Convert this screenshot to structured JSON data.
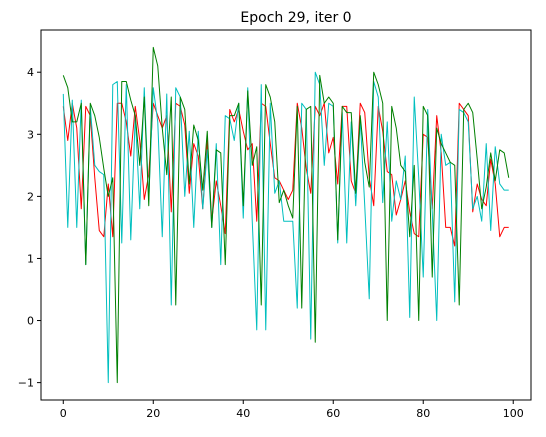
{
  "chart_data": {
    "type": "line",
    "title": "Epoch 29, iter 0",
    "xlabel": "",
    "ylabel": "",
    "xlim": [
      -4.95,
      103.95
    ],
    "ylim": [
      -1.28,
      4.68
    ],
    "x_ticks": [
      0,
      20,
      40,
      60,
      80,
      100
    ],
    "x_tick_labels": [
      "0",
      "20",
      "40",
      "60",
      "80",
      "100"
    ],
    "y_ticks": [
      -1,
      0,
      1,
      2,
      3,
      4
    ],
    "y_tick_labels": [
      "−1",
      "0",
      "1",
      "2",
      "3",
      "4"
    ],
    "grid": false,
    "legend": "none",
    "x": [
      0,
      1,
      2,
      3,
      4,
      5,
      6,
      7,
      8,
      9,
      10,
      11,
      12,
      13,
      14,
      15,
      16,
      17,
      18,
      19,
      20,
      21,
      22,
      23,
      24,
      25,
      26,
      27,
      28,
      29,
      30,
      31,
      32,
      33,
      34,
      35,
      36,
      37,
      38,
      39,
      40,
      41,
      42,
      43,
      44,
      45,
      46,
      47,
      48,
      49,
      50,
      51,
      52,
      53,
      54,
      55,
      56,
      57,
      58,
      59,
      60,
      61,
      62,
      63,
      64,
      65,
      66,
      67,
      68,
      69,
      70,
      71,
      72,
      73,
      74,
      75,
      76,
      77,
      78,
      79,
      80,
      81,
      82,
      83,
      84,
      85,
      86,
      87,
      88,
      89,
      90,
      91,
      92,
      93,
      94,
      95,
      96,
      97,
      98,
      99
    ],
    "series": [
      {
        "color": "#ff0000",
        "values": [
          3.45,
          2.9,
          3.5,
          3.1,
          1.8,
          3.45,
          3.3,
          2.3,
          1.45,
          1.35,
          2.2,
          1.35,
          3.5,
          3.5,
          3.2,
          2.65,
          3.45,
          2.9,
          1.95,
          2.35,
          3.5,
          3.3,
          3.1,
          3.3,
          1.75,
          3.5,
          3.45,
          3.15,
          2.05,
          2.85,
          2.65,
          1.8,
          2.9,
          1.6,
          2.25,
          1.85,
          1.4,
          3.4,
          3.2,
          3.4,
          3.05,
          2.75,
          2.85,
          1.6,
          3.5,
          3.45,
          2.85,
          2.3,
          2.25,
          2.1,
          1.95,
          2.1,
          3.5,
          3.1,
          2.45,
          2.05,
          3.45,
          3.3,
          3.5,
          2.7,
          2.95,
          2.2,
          3.45,
          3.45,
          2.25,
          2.05,
          3.5,
          3.35,
          2.3,
          1.85,
          3.45,
          3.05,
          2.4,
          2.35,
          1.7,
          1.95,
          2.25,
          1.75,
          1.4,
          1.35,
          3.0,
          2.95,
          1.8,
          3.3,
          2.7,
          1.5,
          1.5,
          1.2,
          3.5,
          3.4,
          3.3,
          1.75,
          2.2,
          1.95,
          1.85,
          2.6,
          2.2,
          1.35,
          1.5,
          1.5
        ]
      },
      {
        "color": "#00bfbf",
        "values": [
          3.65,
          1.5,
          3.55,
          1.5,
          3.55,
          0.9,
          3.45,
          2.5,
          2.4,
          2.35,
          -1.0,
          3.8,
          3.85,
          1.25,
          3.8,
          1.3,
          3.3,
          1.8,
          3.75,
          1.95,
          3.75,
          3.2,
          1.35,
          3.65,
          0.25,
          3.75,
          3.6,
          2.0,
          3.05,
          1.5,
          3.05,
          1.8,
          2.75,
          1.5,
          2.85,
          0.9,
          3.3,
          3.25,
          2.9,
          3.5,
          1.65,
          3.75,
          1.6,
          -0.15,
          3.8,
          -0.15,
          3.5,
          2.05,
          2.25,
          1.6,
          1.6,
          1.6,
          0.2,
          3.5,
          3.4,
          -0.3,
          4.0,
          3.8,
          2.5,
          3.5,
          3.45,
          1.25,
          3.35,
          1.25,
          3.2,
          1.85,
          3.25,
          1.85,
          0.35,
          3.85,
          3.6,
          1.9,
          3.2,
          1.6,
          2.25,
          1.95,
          2.65,
          0.05,
          3.6,
          2.3,
          0.7,
          3.4,
          1.75,
          0.0,
          3.0,
          2.5,
          2.55,
          0.3,
          3.4,
          3.35,
          3.2,
          1.8,
          2.0,
          1.6,
          2.85,
          1.45,
          2.8,
          2.2,
          2.1,
          2.1
        ]
      },
      {
        "color": "#008000",
        "values": [
          3.95,
          3.75,
          3.2,
          3.2,
          3.5,
          0.9,
          3.5,
          3.3,
          2.95,
          2.45,
          2.0,
          2.3,
          -1.0,
          3.85,
          3.85,
          3.55,
          3.3,
          2.5,
          3.6,
          1.85,
          4.4,
          4.1,
          3.1,
          2.35,
          3.6,
          0.25,
          3.6,
          3.4,
          2.2,
          3.15,
          2.9,
          2.1,
          3.05,
          1.5,
          2.75,
          2.7,
          0.9,
          3.3,
          3.3,
          3.5,
          1.85,
          3.7,
          2.5,
          2.8,
          0.25,
          3.8,
          3.6,
          3.2,
          1.9,
          2.1,
          1.85,
          1.65,
          3.45,
          0.2,
          3.4,
          3.45,
          -0.35,
          3.95,
          3.5,
          3.6,
          3.5,
          1.3,
          3.45,
          3.35,
          3.35,
          2.05,
          3.3,
          2.55,
          2.15,
          4.0,
          3.8,
          3.5,
          0.0,
          3.45,
          3.1,
          2.5,
          2.4,
          1.35,
          2.5,
          0.0,
          3.45,
          3.3,
          0.7,
          3.1,
          2.85,
          2.7,
          2.55,
          2.5,
          0.25,
          3.4,
          3.5,
          3.35,
          2.6,
          1.8,
          2.15,
          2.7,
          2.25,
          2.75,
          2.7,
          2.3
        ]
      }
    ]
  }
}
